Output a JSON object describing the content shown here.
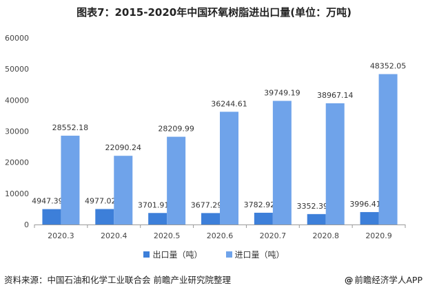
{
  "title": "图表7：2015-2020年中国环氧树脂进出口量(单位：万吨)",
  "source": "资料来源：中国石油和化学工业联合会 前瞻产业研究院整理",
  "brand": {
    "mark": "@",
    "text": "前瞻经济学人APP"
  },
  "colors": {
    "export": "#3d7fd9",
    "import": "#6fa3ea",
    "axis": "#999999",
    "grid": "#e8e8e8"
  },
  "chart_data": {
    "type": "bar",
    "categories": [
      "2020.3",
      "2020.4",
      "2020.5",
      "2020.6",
      "2020.7",
      "2020.8",
      "2020.9"
    ],
    "series": [
      {
        "name": "出口量（吨）",
        "values": [
          4947.39,
          4977.02,
          3701.91,
          3677.29,
          3782.92,
          3352.39,
          3996.41
        ]
      },
      {
        "name": "进口量（吨）",
        "values": [
          28552.18,
          22090.24,
          28209.99,
          36244.61,
          39749.19,
          38967.14,
          48352.05
        ]
      }
    ],
    "data_labels": {
      "export": [
        "4947.39",
        "4977.02",
        "3701.91",
        "3677.29",
        "3782.92",
        "3352.39",
        "3996.41"
      ],
      "import": [
        "28552.18",
        "22090.24",
        "28209.99",
        "36244.61",
        "39749.19",
        "38967.14",
        "48352.05"
      ]
    },
    "yticks": [
      "0",
      "10000",
      "20000",
      "30000",
      "40000",
      "50000",
      "60000"
    ],
    "ylim": [
      0,
      60000
    ],
    "legend": "bottom",
    "grid": false
  }
}
